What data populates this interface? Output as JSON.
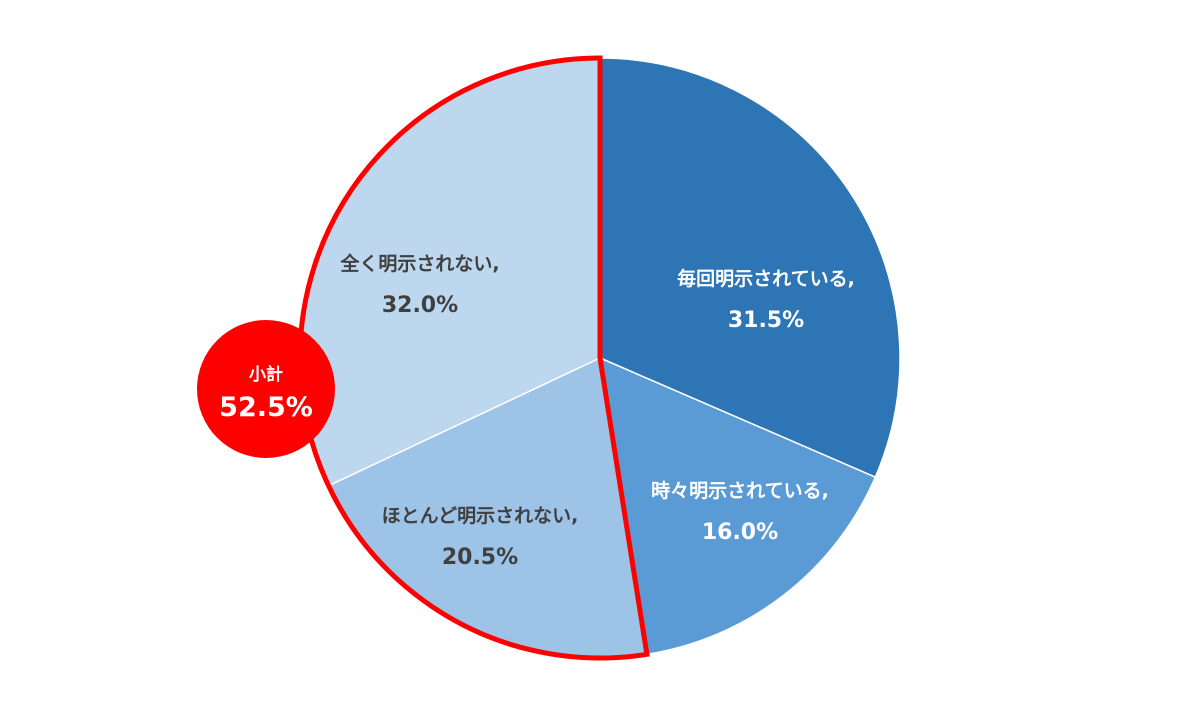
{
  "chart_data": {
    "type": "pie",
    "start_angle": "12 o'clock",
    "direction": "clockwise",
    "slices": [
      {
        "label": "毎回明示されている,",
        "value_label": "31.5%",
        "value": 31.5,
        "color": "#2E75B6",
        "text_color": "#FFFFFF"
      },
      {
        "label": "時々明示されている,",
        "value_label": "16.0%",
        "value": 16.0,
        "color": "#5B9BD5",
        "text_color": "#FFFFFF"
      },
      {
        "label": "ほとんど明示されない,",
        "value_label": "20.5%",
        "value": 20.5,
        "color": "#9DC3E6",
        "text_color": "#404040"
      },
      {
        "label": "全く明示されない,",
        "value_label": "32.0%",
        "value": 32.0,
        "color": "#BDD7EE",
        "text_color": "#404040"
      }
    ],
    "highlight": {
      "slices": [
        2,
        3
      ],
      "outline_color": "#FF0000",
      "badge_title": "小計",
      "badge_value": "52.5%",
      "badge_color": "#FF0000"
    }
  }
}
